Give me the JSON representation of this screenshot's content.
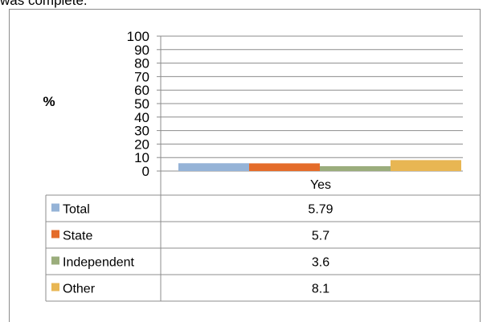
{
  "caption": "was complete.",
  "chart_data": {
    "type": "bar",
    "categories": [
      "Yes"
    ],
    "series": [
      {
        "name": "Total",
        "values": [
          5.79
        ],
        "color": "#95b3d7"
      },
      {
        "name": "State",
        "values": [
          5.7
        ],
        "color": "#e46c2a"
      },
      {
        "name": "Independent",
        "values": [
          3.6
        ],
        "color": "#9bad7c"
      },
      {
        "name": "Other",
        "values": [
          8.1
        ],
        "color": "#e8b653"
      }
    ],
    "table_values": [
      "5.79",
      "5.7",
      "3.6",
      "8.1"
    ],
    "ylabel": "%",
    "ylim": [
      0,
      100
    ],
    "yticks": [
      "0",
      "10",
      "20",
      "30",
      "40",
      "50",
      "60",
      "70",
      "80",
      "90",
      "100"
    ],
    "grid": true,
    "legend": "data-table"
  }
}
